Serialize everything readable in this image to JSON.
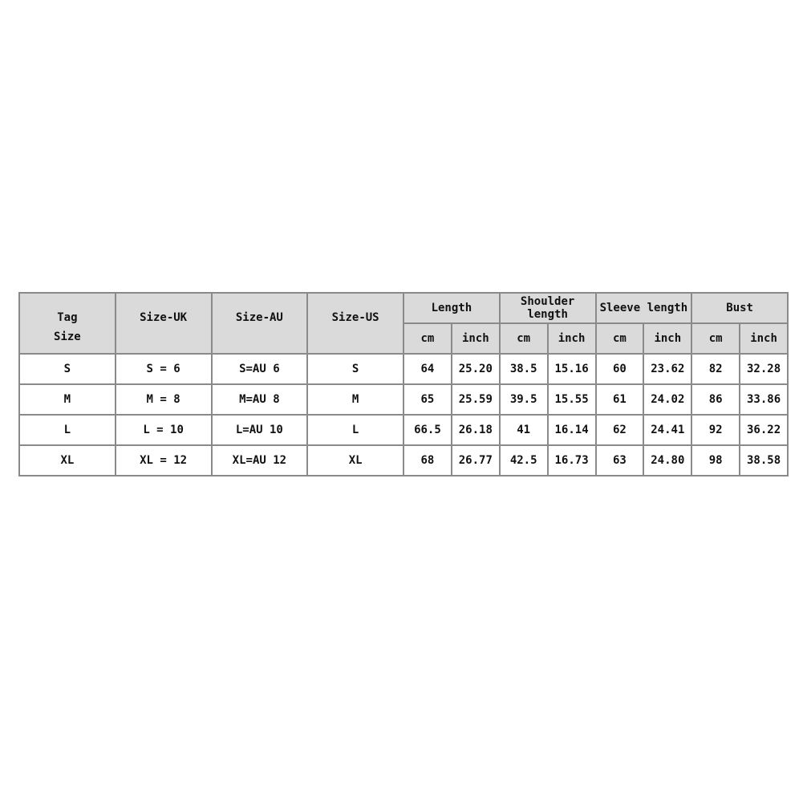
{
  "header": {
    "tag_size": [
      "Tag",
      "Size"
    ],
    "size_uk": "Size-UK",
    "size_au": "Size-AU",
    "size_us": "Size-US",
    "groups": [
      "Length",
      "Shoulder length",
      "Sleeve length",
      "Bust"
    ],
    "units": [
      "cm",
      "inch",
      "cm",
      "inch",
      "cm",
      "inch",
      "cm",
      "inch"
    ]
  },
  "rows": [
    [
      "S",
      "S = 6",
      "S=AU 6",
      "S",
      "64",
      "25.20",
      "38.5",
      "15.16",
      "60",
      "23.62",
      "82",
      "32.28"
    ],
    [
      "M",
      "M = 8",
      "M=AU 8",
      "M",
      "65",
      "25.59",
      "39.5",
      "15.55",
      "61",
      "24.02",
      "86",
      "33.86"
    ],
    [
      "L",
      "L = 10",
      "L=AU 10",
      "L",
      "66.5",
      "26.18",
      "41",
      "16.14",
      "62",
      "24.41",
      "92",
      "36.22"
    ],
    [
      "XL",
      "XL = 12",
      "XL=AU 12",
      "XL",
      "68",
      "26.77",
      "42.5",
      "16.73",
      "63",
      "24.80",
      "98",
      "38.58"
    ]
  ]
}
